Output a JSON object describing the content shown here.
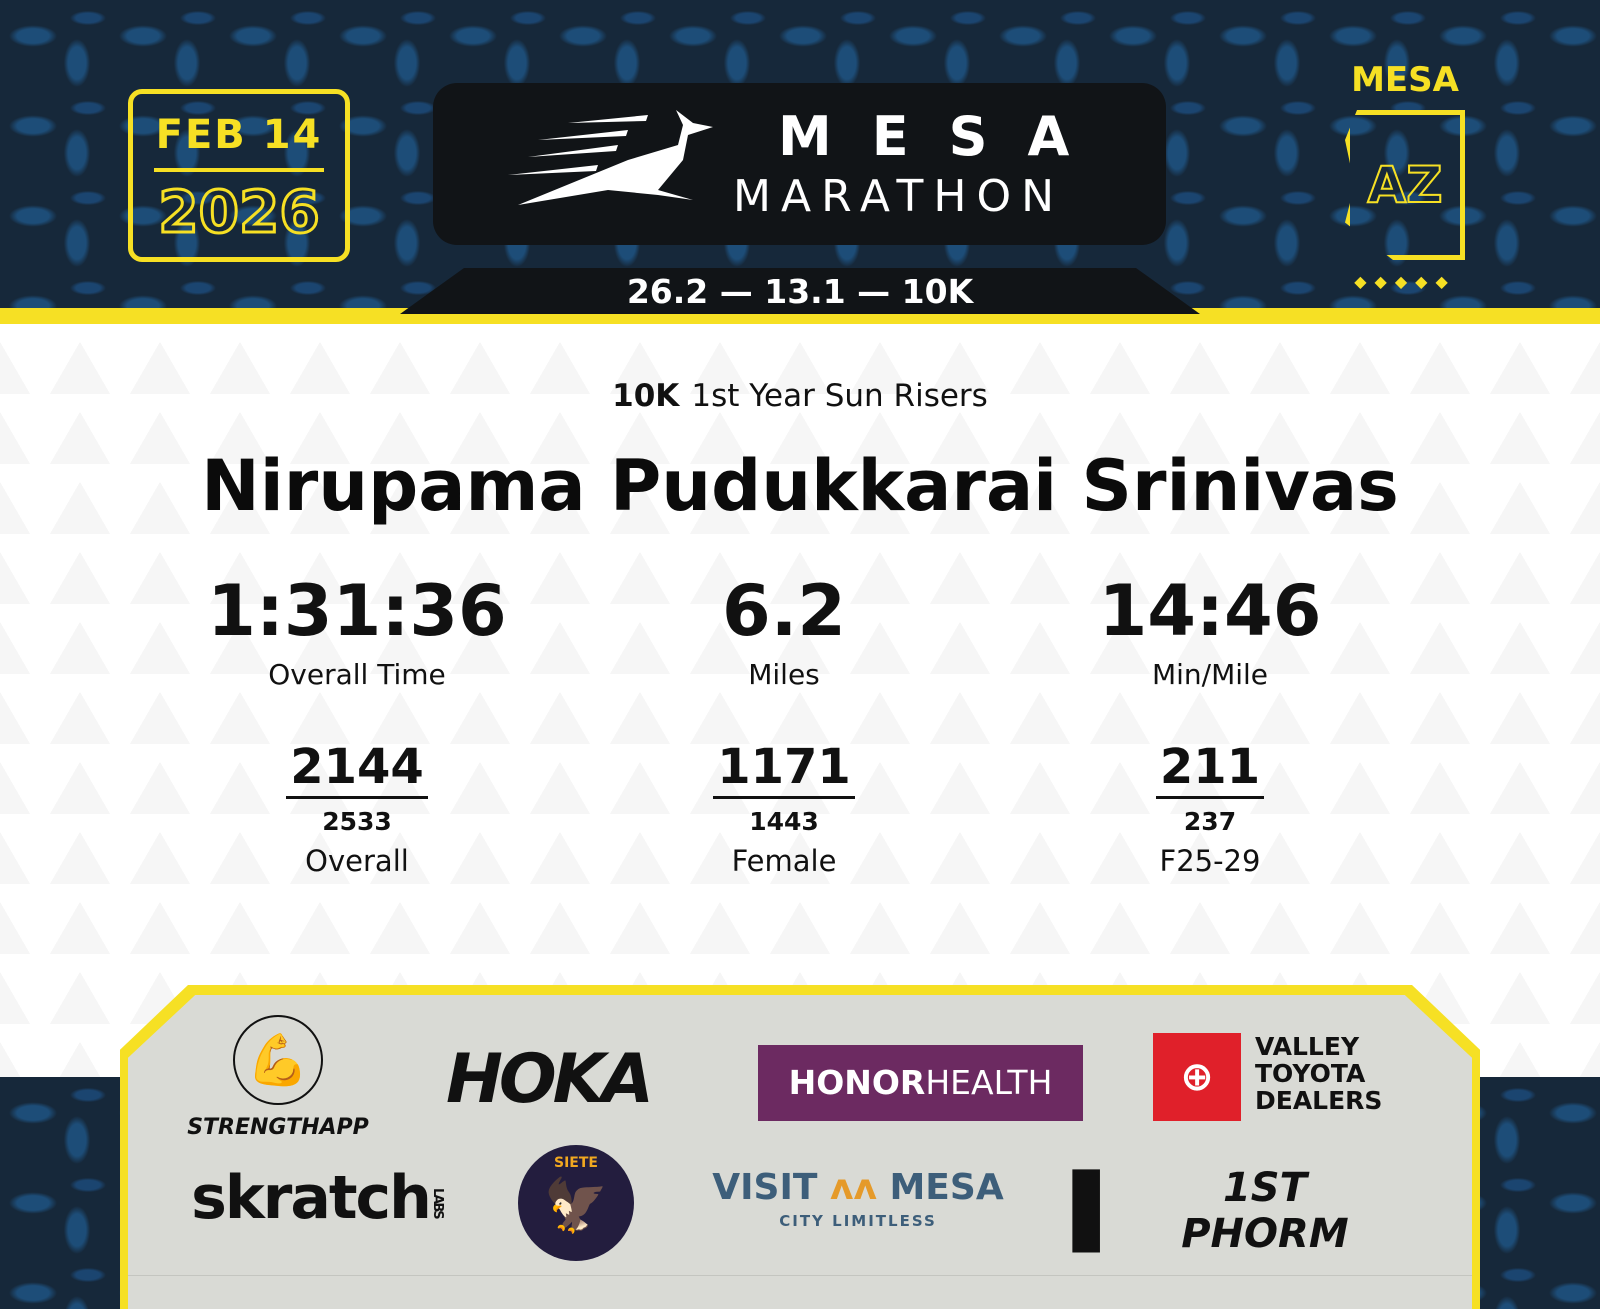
{
  "header": {
    "date": "FEB 14",
    "year": "2026",
    "logo_line1": "MESA",
    "logo_line2": "MARATHON",
    "distances": "26.2 — 13.1 — 10K",
    "city": "MESA",
    "state": "AZ"
  },
  "result": {
    "race": "10K",
    "division": "1st Year Sun Risers",
    "name": "Nirupama Pudukkarai Srinivas",
    "stats": [
      {
        "value": "1:31:36",
        "label": "Overall Time"
      },
      {
        "value": "6.2",
        "label": "Miles"
      },
      {
        "value": "14:46",
        "label": "Min/Mile"
      }
    ],
    "ranks": [
      {
        "place": "2144",
        "total": "2533",
        "label": "Overall"
      },
      {
        "place": "1171",
        "total": "1443",
        "label": "Female"
      },
      {
        "place": "211",
        "total": "237",
        "label": "F25-29"
      }
    ]
  },
  "sponsors": [
    "STRENGTHAPP",
    "HOKA",
    "HONOR",
    "HEALTH",
    "VALLEY TOYOTA DEALERS",
    "skratch",
    "LABS",
    "SIETE",
    "VISIT",
    "MESA",
    "CITY LIMITLESS",
    "1ST PHORM"
  ],
  "colors": {
    "yellow": "#f6e024",
    "navy": "#16283a",
    "purple": "#6c2a61",
    "toyota_red": "#e0202a"
  }
}
